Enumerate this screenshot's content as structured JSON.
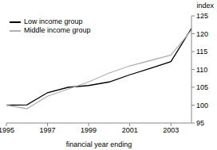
{
  "chart_data": {
    "type": "line",
    "x_label": "financial year ending",
    "y_label": "index",
    "x": [
      1995,
      1996,
      1997,
      1998,
      1999,
      2000,
      2001,
      2002,
      2003,
      2004
    ],
    "series": [
      {
        "name": "Low income group",
        "color": "#000000",
        "values": [
          100,
          100.1,
          103.5,
          105,
          105.5,
          106.5,
          108.5,
          110.3,
          112.2,
          121.5
        ]
      },
      {
        "name": "Middle income group",
        "color": "#b0b0b0",
        "values": [
          100,
          99,
          102.5,
          104.5,
          106.5,
          109,
          111,
          112.5,
          114,
          121
        ]
      }
    ],
    "xlim": [
      1995,
      2004
    ],
    "xticks": [
      1995,
      1997,
      1999,
      2001,
      2003
    ],
    "ylim": [
      95,
      125
    ],
    "yticks": [
      95,
      100,
      105,
      110,
      115,
      120,
      125
    ],
    "grid": false,
    "legend": "upper left"
  }
}
